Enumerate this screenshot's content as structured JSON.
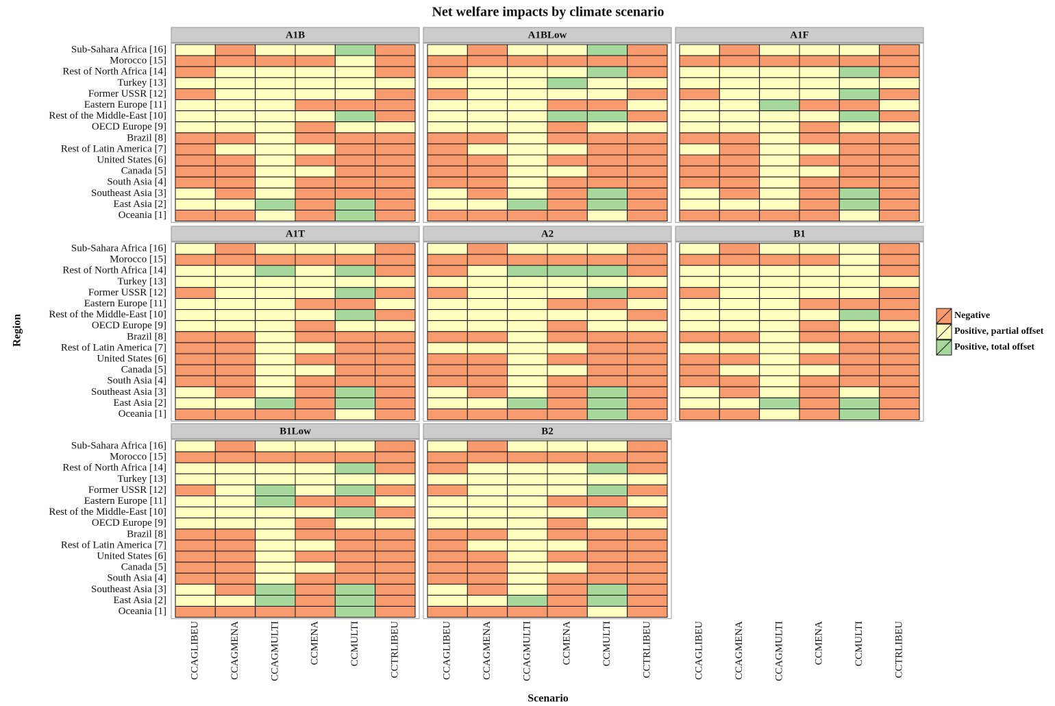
{
  "chart_data": {
    "type": "heatmap",
    "title": "Net welfare impacts by climate scenario",
    "x_label": "Scenario",
    "y_label": "Region",
    "columns": [
      "CCAGLIBEU",
      "CCAGMENA",
      "CCAGMULTI",
      "CCMENA",
      "CCMULTI",
      "CCTRLIBEU"
    ],
    "rows": [
      "Sub-Sahara Africa [16]",
      "Morocco [15]",
      "Rest of North Africa [14]",
      "Turkey [13]",
      "Former USSR [12]",
      "Eastern Europe [11]",
      "Rest of the Middle-East [10]",
      "OECD Europe [9]",
      "Brazil [8]",
      "Rest of Latin America [7]",
      "United States [6]",
      "Canada [5]",
      "South Asia [4]",
      "Southeast Asia [3]",
      "East Asia [2]",
      "Oceania [1]"
    ],
    "levels": [
      {
        "name": "Negative",
        "color": "#f79b6e"
      },
      {
        "name": "Positive, partial offset",
        "color": "#ffffbf"
      },
      {
        "name": "Positive, total offset",
        "color": "#a6d89c"
      }
    ],
    "panels": [
      {
        "name": "A1B",
        "values": [
          [
            1,
            0,
            1,
            1,
            2,
            0
          ],
          [
            0,
            0,
            0,
            0,
            1,
            0
          ],
          [
            0,
            1,
            1,
            1,
            1,
            0
          ],
          [
            1,
            1,
            1,
            1,
            1,
            1
          ],
          [
            0,
            1,
            1,
            1,
            1,
            0
          ],
          [
            1,
            1,
            1,
            0,
            0,
            0
          ],
          [
            1,
            1,
            1,
            1,
            2,
            0
          ],
          [
            1,
            1,
            1,
            0,
            1,
            1
          ],
          [
            0,
            0,
            1,
            0,
            0,
            0
          ],
          [
            0,
            1,
            1,
            1,
            0,
            0
          ],
          [
            0,
            0,
            1,
            0,
            0,
            0
          ],
          [
            0,
            0,
            1,
            1,
            0,
            0
          ],
          [
            0,
            0,
            1,
            0,
            0,
            0
          ],
          [
            1,
            0,
            1,
            0,
            0,
            0
          ],
          [
            1,
            1,
            2,
            0,
            2,
            0
          ],
          [
            0,
            0,
            1,
            0,
            2,
            0
          ]
        ]
      },
      {
        "name": "A1BLow",
        "values": [
          [
            1,
            0,
            1,
            1,
            2,
            0
          ],
          [
            0,
            0,
            0,
            0,
            0,
            0
          ],
          [
            0,
            1,
            1,
            1,
            2,
            0
          ],
          [
            1,
            1,
            1,
            2,
            1,
            1
          ],
          [
            0,
            1,
            1,
            1,
            1,
            0
          ],
          [
            1,
            1,
            1,
            0,
            0,
            1
          ],
          [
            1,
            1,
            1,
            2,
            2,
            0
          ],
          [
            1,
            1,
            1,
            0,
            1,
            1
          ],
          [
            0,
            0,
            1,
            0,
            0,
            0
          ],
          [
            0,
            1,
            1,
            1,
            0,
            0
          ],
          [
            0,
            0,
            1,
            0,
            0,
            0
          ],
          [
            0,
            0,
            1,
            1,
            0,
            0
          ],
          [
            0,
            0,
            1,
            0,
            0,
            0
          ],
          [
            1,
            0,
            1,
            0,
            2,
            0
          ],
          [
            1,
            1,
            2,
            0,
            2,
            0
          ],
          [
            0,
            0,
            0,
            0,
            1,
            0
          ]
        ]
      },
      {
        "name": "A1F",
        "values": [
          [
            1,
            0,
            1,
            1,
            1,
            0
          ],
          [
            0,
            0,
            0,
            0,
            0,
            0
          ],
          [
            1,
            1,
            1,
            1,
            2,
            0
          ],
          [
            1,
            1,
            1,
            1,
            1,
            1
          ],
          [
            0,
            1,
            1,
            1,
            2,
            0
          ],
          [
            1,
            1,
            2,
            0,
            0,
            1
          ],
          [
            1,
            1,
            1,
            1,
            2,
            0
          ],
          [
            1,
            1,
            1,
            0,
            1,
            1
          ],
          [
            0,
            0,
            1,
            0,
            0,
            0
          ],
          [
            1,
            0,
            1,
            1,
            0,
            0
          ],
          [
            0,
            0,
            1,
            0,
            0,
            0
          ],
          [
            0,
            0,
            1,
            1,
            0,
            0
          ],
          [
            0,
            0,
            1,
            0,
            0,
            0
          ],
          [
            1,
            0,
            1,
            0,
            2,
            0
          ],
          [
            1,
            1,
            1,
            0,
            2,
            0
          ],
          [
            0,
            0,
            0,
            0,
            1,
            0
          ]
        ]
      },
      {
        "name": "A1T",
        "values": [
          [
            1,
            0,
            1,
            1,
            1,
            0
          ],
          [
            0,
            0,
            0,
            0,
            0,
            0
          ],
          [
            1,
            1,
            2,
            1,
            2,
            0
          ],
          [
            1,
            1,
            1,
            1,
            1,
            1
          ],
          [
            0,
            1,
            1,
            1,
            2,
            0
          ],
          [
            1,
            1,
            1,
            0,
            0,
            1
          ],
          [
            1,
            1,
            1,
            1,
            2,
            0
          ],
          [
            1,
            1,
            1,
            0,
            1,
            1
          ],
          [
            0,
            0,
            1,
            0,
            0,
            0
          ],
          [
            0,
            0,
            1,
            1,
            0,
            0
          ],
          [
            0,
            0,
            1,
            0,
            0,
            0
          ],
          [
            0,
            0,
            1,
            1,
            0,
            0
          ],
          [
            0,
            0,
            1,
            0,
            0,
            0
          ],
          [
            1,
            0,
            1,
            0,
            2,
            0
          ],
          [
            1,
            1,
            2,
            0,
            2,
            0
          ],
          [
            0,
            0,
            0,
            0,
            1,
            0
          ]
        ]
      },
      {
        "name": "A2",
        "values": [
          [
            1,
            0,
            1,
            1,
            1,
            0
          ],
          [
            0,
            0,
            0,
            0,
            0,
            0
          ],
          [
            0,
            1,
            2,
            2,
            2,
            0
          ],
          [
            1,
            1,
            1,
            1,
            1,
            1
          ],
          [
            0,
            1,
            1,
            1,
            2,
            0
          ],
          [
            1,
            1,
            1,
            0,
            0,
            1
          ],
          [
            1,
            1,
            1,
            1,
            1,
            0
          ],
          [
            1,
            1,
            1,
            0,
            1,
            1
          ],
          [
            0,
            0,
            1,
            0,
            0,
            0
          ],
          [
            1,
            1,
            1,
            1,
            0,
            0
          ],
          [
            0,
            0,
            1,
            0,
            0,
            0
          ],
          [
            0,
            0,
            1,
            1,
            0,
            0
          ],
          [
            0,
            0,
            1,
            0,
            0,
            0
          ],
          [
            1,
            0,
            1,
            0,
            2,
            0
          ],
          [
            1,
            1,
            2,
            0,
            2,
            0
          ],
          [
            0,
            0,
            0,
            0,
            2,
            0
          ]
        ]
      },
      {
        "name": "B1",
        "values": [
          [
            1,
            0,
            1,
            1,
            1,
            0
          ],
          [
            0,
            0,
            0,
            0,
            1,
            0
          ],
          [
            1,
            1,
            1,
            1,
            1,
            0
          ],
          [
            1,
            1,
            1,
            1,
            1,
            1
          ],
          [
            0,
            1,
            1,
            1,
            1,
            0
          ],
          [
            1,
            1,
            1,
            0,
            0,
            0
          ],
          [
            1,
            1,
            1,
            1,
            2,
            0
          ],
          [
            1,
            1,
            1,
            0,
            1,
            1
          ],
          [
            0,
            0,
            1,
            0,
            0,
            0
          ],
          [
            1,
            1,
            1,
            1,
            0,
            0
          ],
          [
            0,
            0,
            1,
            0,
            0,
            0
          ],
          [
            0,
            1,
            1,
            1,
            0,
            0
          ],
          [
            0,
            0,
            1,
            0,
            0,
            0
          ],
          [
            1,
            0,
            1,
            0,
            1,
            0
          ],
          [
            1,
            1,
            2,
            0,
            2,
            0
          ],
          [
            0,
            0,
            1,
            0,
            2,
            0
          ]
        ]
      },
      {
        "name": "B1Low",
        "values": [
          [
            1,
            0,
            1,
            1,
            1,
            0
          ],
          [
            0,
            0,
            0,
            0,
            0,
            0
          ],
          [
            1,
            1,
            1,
            1,
            2,
            0
          ],
          [
            1,
            1,
            1,
            1,
            1,
            1
          ],
          [
            0,
            1,
            2,
            1,
            2,
            0
          ],
          [
            1,
            1,
            2,
            0,
            0,
            1
          ],
          [
            1,
            1,
            1,
            1,
            2,
            0
          ],
          [
            1,
            1,
            1,
            0,
            1,
            1
          ],
          [
            0,
            0,
            1,
            0,
            0,
            0
          ],
          [
            0,
            0,
            1,
            1,
            0,
            0
          ],
          [
            0,
            0,
            1,
            0,
            0,
            0
          ],
          [
            0,
            0,
            1,
            1,
            0,
            0
          ],
          [
            0,
            0,
            1,
            0,
            0,
            0
          ],
          [
            1,
            0,
            2,
            0,
            2,
            0
          ],
          [
            1,
            1,
            2,
            0,
            2,
            0
          ],
          [
            0,
            0,
            0,
            0,
            2,
            0
          ]
        ]
      },
      {
        "name": "B2",
        "values": [
          [
            1,
            0,
            1,
            1,
            1,
            0
          ],
          [
            0,
            0,
            0,
            0,
            0,
            0
          ],
          [
            0,
            1,
            1,
            1,
            2,
            0
          ],
          [
            1,
            1,
            1,
            1,
            1,
            1
          ],
          [
            0,
            1,
            1,
            1,
            2,
            0
          ],
          [
            1,
            1,
            1,
            0,
            0,
            1
          ],
          [
            1,
            1,
            1,
            1,
            2,
            0
          ],
          [
            1,
            1,
            1,
            0,
            1,
            1
          ],
          [
            0,
            0,
            1,
            0,
            0,
            0
          ],
          [
            0,
            1,
            1,
            1,
            0,
            0
          ],
          [
            0,
            0,
            1,
            0,
            0,
            0
          ],
          [
            0,
            0,
            1,
            1,
            0,
            0
          ],
          [
            0,
            0,
            1,
            0,
            0,
            0
          ],
          [
            1,
            0,
            1,
            0,
            2,
            0
          ],
          [
            1,
            1,
            2,
            0,
            2,
            0
          ],
          [
            0,
            0,
            0,
            0,
            1,
            0
          ]
        ]
      }
    ]
  }
}
